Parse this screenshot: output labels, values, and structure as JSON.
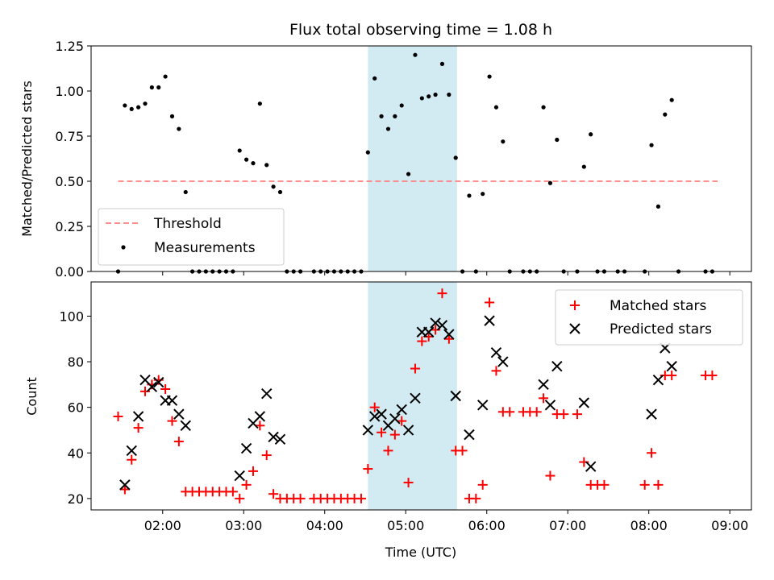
{
  "colors": {
    "threshold": "#ff7f7f",
    "measurement": "#000000",
    "matched": "#ff0000",
    "predicted": "#000000",
    "span": "#add8e6"
  },
  "chart_data": [
    {
      "type": "scatter",
      "title": "Flux total observing time = 1.08 h",
      "xlabel": "",
      "ylabel": "Matched/Predicted stars",
      "xlim": [
        "01:07",
        "09:16"
      ],
      "ylim": [
        0,
        1.25
      ],
      "yticks": [
        "0.00",
        "0.25",
        "0.50",
        "0.75",
        "1.00",
        "1.25"
      ],
      "highlight_span": [
        "04:32",
        "05:38"
      ],
      "threshold": {
        "name": "Threshold",
        "y": 0.5,
        "x": [
          "01:27",
          "08:51"
        ]
      },
      "legend": {
        "position": "lower-left",
        "entries": [
          "Threshold",
          "Measurements"
        ]
      },
      "series": [
        {
          "name": "Measurements",
          "points": [
            [
              "01:27",
              0
            ],
            [
              "01:32",
              0.92
            ],
            [
              "01:37",
              0.9
            ],
            [
              "01:42",
              0.91
            ],
            [
              "01:47",
              0.93
            ],
            [
              "01:52",
              1.02
            ],
            [
              "01:57",
              1.02
            ],
            [
              "02:02",
              1.08
            ],
            [
              "02:07",
              0.86
            ],
            [
              "02:12",
              0.79
            ],
            [
              "02:17",
              0.44
            ],
            [
              "02:22",
              0
            ],
            [
              "02:27",
              0
            ],
            [
              "02:32",
              0
            ],
            [
              "02:37",
              0
            ],
            [
              "02:42",
              0
            ],
            [
              "02:47",
              0
            ],
            [
              "02:52",
              0
            ],
            [
              "02:57",
              0.67
            ],
            [
              "03:02",
              0.62
            ],
            [
              "03:07",
              0.6
            ],
            [
              "03:12",
              0.93
            ],
            [
              "03:17",
              0.59
            ],
            [
              "03:22",
              0.47
            ],
            [
              "03:27",
              0.44
            ],
            [
              "03:32",
              0
            ],
            [
              "03:37",
              0
            ],
            [
              "03:42",
              0
            ],
            [
              "03:52",
              0
            ],
            [
              "03:57",
              0
            ],
            [
              "04:02",
              0
            ],
            [
              "04:07",
              0
            ],
            [
              "04:12",
              0
            ],
            [
              "04:17",
              0
            ],
            [
              "04:22",
              0
            ],
            [
              "04:27",
              0
            ],
            [
              "04:32",
              0.66
            ],
            [
              "04:37",
              1.07
            ],
            [
              "04:42",
              0.86
            ],
            [
              "04:47",
              0.79
            ],
            [
              "04:52",
              0.86
            ],
            [
              "04:57",
              0.92
            ],
            [
              "05:02",
              0.54
            ],
            [
              "05:07",
              1.2
            ],
            [
              "05:12",
              0.96
            ],
            [
              "05:17",
              0.97
            ],
            [
              "05:22",
              0.98
            ],
            [
              "05:27",
              1.15
            ],
            [
              "05:32",
              0.98
            ],
            [
              "05:37",
              0.63
            ],
            [
              "05:42",
              0
            ],
            [
              "05:47",
              0.42
            ],
            [
              "05:52",
              0
            ],
            [
              "05:57",
              0.43
            ],
            [
              "06:02",
              1.08
            ],
            [
              "06:07",
              0.91
            ],
            [
              "06:12",
              0.72
            ],
            [
              "06:17",
              0
            ],
            [
              "06:27",
              0
            ],
            [
              "06:32",
              0
            ],
            [
              "06:37",
              0
            ],
            [
              "06:42",
              0.91
            ],
            [
              "06:47",
              0.49
            ],
            [
              "06:52",
              0.73
            ],
            [
              "06:57",
              0
            ],
            [
              "07:07",
              0
            ],
            [
              "07:12",
              0.58
            ],
            [
              "07:17",
              0.76
            ],
            [
              "07:22",
              0
            ],
            [
              "07:27",
              0
            ],
            [
              "07:37",
              0
            ],
            [
              "07:42",
              0
            ],
            [
              "07:57",
              0
            ],
            [
              "08:02",
              0.7
            ],
            [
              "08:07",
              0.36
            ],
            [
              "08:12",
              0.87
            ],
            [
              "08:17",
              0.95
            ],
            [
              "08:22",
              0
            ],
            [
              "08:42",
              0
            ],
            [
              "08:47",
              0
            ]
          ]
        }
      ]
    },
    {
      "type": "scatter",
      "title": "",
      "xlabel": "Time (UTC)",
      "ylabel": "Count",
      "xlim": [
        "01:07",
        "09:16"
      ],
      "ylim": [
        15,
        115
      ],
      "xticks": [
        "02:00",
        "03:00",
        "04:00",
        "05:00",
        "06:00",
        "07:00",
        "08:00",
        "09:00"
      ],
      "yticks": [
        "20",
        "40",
        "60",
        "80",
        "100"
      ],
      "highlight_span": [
        "04:32",
        "05:38"
      ],
      "legend": {
        "position": "top-right",
        "entries": [
          "Matched stars",
          "Predicted stars"
        ]
      },
      "series": [
        {
          "name": "Matched stars",
          "marker": "plus",
          "points": [
            [
              "01:27",
              56
            ],
            [
              "01:32",
              24
            ],
            [
              "01:37",
              37
            ],
            [
              "01:42",
              51
            ],
            [
              "01:47",
              67
            ],
            [
              "01:52",
              70
            ],
            [
              "01:57",
              72
            ],
            [
              "02:02",
              68
            ],
            [
              "02:07",
              54
            ],
            [
              "02:12",
              45
            ],
            [
              "02:17",
              23
            ],
            [
              "02:22",
              23
            ],
            [
              "02:27",
              23
            ],
            [
              "02:32",
              23
            ],
            [
              "02:37",
              23
            ],
            [
              "02:42",
              23
            ],
            [
              "02:47",
              23
            ],
            [
              "02:52",
              23
            ],
            [
              "02:57",
              20
            ],
            [
              "03:02",
              26
            ],
            [
              "03:07",
              32
            ],
            [
              "03:12",
              52
            ],
            [
              "03:17",
              39
            ],
            [
              "03:22",
              22
            ],
            [
              "03:27",
              20
            ],
            [
              "03:32",
              20
            ],
            [
              "03:37",
              20
            ],
            [
              "03:42",
              20
            ],
            [
              "03:52",
              20
            ],
            [
              "03:57",
              20
            ],
            [
              "04:02",
              20
            ],
            [
              "04:07",
              20
            ],
            [
              "04:12",
              20
            ],
            [
              "04:17",
              20
            ],
            [
              "04:22",
              20
            ],
            [
              "04:27",
              20
            ],
            [
              "04:32",
              33
            ],
            [
              "04:37",
              60
            ],
            [
              "04:42",
              49
            ],
            [
              "04:47",
              41
            ],
            [
              "04:52",
              48
            ],
            [
              "04:57",
              54
            ],
            [
              "05:02",
              27
            ],
            [
              "05:07",
              77
            ],
            [
              "05:12",
              89
            ],
            [
              "05:17",
              91
            ],
            [
              "05:22",
              94
            ],
            [
              "05:27",
              110
            ],
            [
              "05:32",
              90
            ],
            [
              "05:37",
              41
            ],
            [
              "05:42",
              41
            ],
            [
              "05:47",
              20
            ],
            [
              "05:52",
              20
            ],
            [
              "05:57",
              26
            ],
            [
              "06:02",
              106
            ],
            [
              "06:07",
              76
            ],
            [
              "06:12",
              58
            ],
            [
              "06:17",
              58
            ],
            [
              "06:27",
              58
            ],
            [
              "06:32",
              58
            ],
            [
              "06:37",
              58
            ],
            [
              "06:42",
              64
            ],
            [
              "06:47",
              30
            ],
            [
              "06:52",
              57
            ],
            [
              "06:57",
              57
            ],
            [
              "07:07",
              57
            ],
            [
              "07:12",
              36
            ],
            [
              "07:17",
              26
            ],
            [
              "07:22",
              26
            ],
            [
              "07:27",
              26
            ],
            [
              "07:57",
              26
            ],
            [
              "08:02",
              40
            ],
            [
              "08:07",
              26
            ],
            [
              "08:12",
              74
            ],
            [
              "08:17",
              74
            ],
            [
              "08:42",
              74
            ],
            [
              "08:47",
              74
            ]
          ]
        },
        {
          "name": "Predicted stars",
          "marker": "x",
          "points": [
            [
              "01:32",
              26
            ],
            [
              "01:37",
              41
            ],
            [
              "01:42",
              56
            ],
            [
              "01:47",
              72
            ],
            [
              "01:52",
              69
            ],
            [
              "01:57",
              71
            ],
            [
              "02:02",
              63
            ],
            [
              "02:07",
              63
            ],
            [
              "02:12",
              57
            ],
            [
              "02:17",
              52
            ],
            [
              "02:57",
              30
            ],
            [
              "03:02",
              42
            ],
            [
              "03:07",
              53
            ],
            [
              "03:12",
              56
            ],
            [
              "03:17",
              66
            ],
            [
              "03:22",
              47
            ],
            [
              "03:27",
              46
            ],
            [
              "04:32",
              50
            ],
            [
              "04:37",
              56
            ],
            [
              "04:42",
              57
            ],
            [
              "04:47",
              52
            ],
            [
              "04:52",
              55
            ],
            [
              "04:57",
              59
            ],
            [
              "05:02",
              50
            ],
            [
              "05:07",
              64
            ],
            [
              "05:12",
              93
            ],
            [
              "05:17",
              93
            ],
            [
              "05:22",
              97
            ],
            [
              "05:27",
              96
            ],
            [
              "05:32",
              92
            ],
            [
              "05:37",
              65
            ],
            [
              "05:47",
              48
            ],
            [
              "05:57",
              61
            ],
            [
              "06:02",
              98
            ],
            [
              "06:07",
              84
            ],
            [
              "06:12",
              80
            ],
            [
              "06:42",
              70
            ],
            [
              "06:47",
              61
            ],
            [
              "06:52",
              78
            ],
            [
              "07:12",
              62
            ],
            [
              "07:17",
              34
            ],
            [
              "08:02",
              57
            ],
            [
              "08:07",
              72
            ],
            [
              "08:12",
              86
            ],
            [
              "08:17",
              78
            ]
          ]
        }
      ]
    }
  ]
}
